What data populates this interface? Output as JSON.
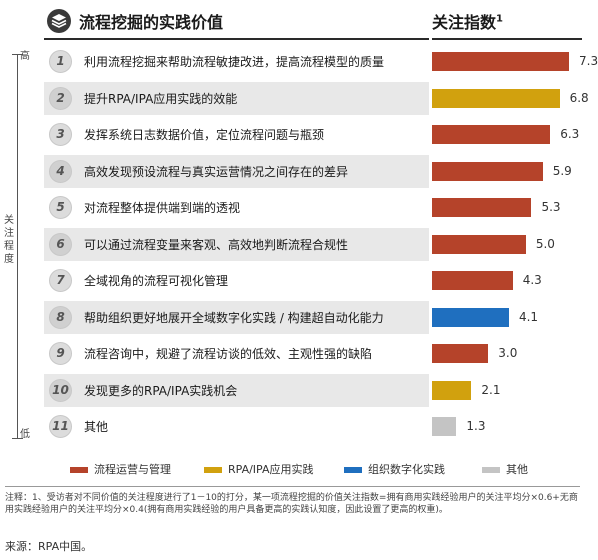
{
  "header": {
    "title": "流程挖掘的实践价值",
    "index_title": "关注指数",
    "index_sup": "1"
  },
  "axis": {
    "high": "高",
    "low": "低",
    "label": "关注程度"
  },
  "colors": {
    "process_ops": "#b5432a",
    "rpa_ipa": "#d1a10e",
    "digital": "#1f6fbf",
    "other": "#c4c4c4"
  },
  "chart_data": {
    "type": "bar",
    "orientation": "horizontal",
    "categories": [
      "利用流程挖掘来帮助流程敏捷改进，提高流程模型的质量",
      "提升RPA/IPA应用实践的效能",
      "发挥系统日志数据价值，定位流程问题与瓶颈",
      "高效发现预设流程与真实运营情况之间存在的差异",
      "对流程整体提供端到端的透视",
      "可以通过流程变量来客观、高效地判断流程合规性",
      "全域视角的流程可视化管理",
      "帮助组织更好地展开全域数字化实践 / 构建超自动化能力",
      "流程咨询中，规避了流程访谈的低效、主观性强的缺陷",
      "发现更多的RPA/IPA实践机会",
      "其他"
    ],
    "numbers": [
      "1",
      "2",
      "3",
      "4",
      "5",
      "6",
      "7",
      "8",
      "9",
      "10",
      "11"
    ],
    "values": [
      7.3,
      6.8,
      6.3,
      5.9,
      5.3,
      5.0,
      4.3,
      4.1,
      3.0,
      2.1,
      1.3
    ],
    "value_labels": [
      "7.3",
      "6.8",
      "6.3",
      "5.9",
      "5.3",
      "5.0",
      "4.3",
      "4.1",
      "3.0",
      "2.1",
      "1.3"
    ],
    "groups": [
      "process_ops",
      "rpa_ipa",
      "process_ops",
      "process_ops",
      "process_ops",
      "process_ops",
      "process_ops",
      "digital",
      "process_ops",
      "rpa_ipa",
      "other"
    ],
    "xlim": [
      0,
      10
    ],
    "legend": [
      {
        "key": "process_ops",
        "label": "流程运营与管理"
      },
      {
        "key": "rpa_ipa",
        "label": "RPA/IPA应用实践"
      },
      {
        "key": "digital",
        "label": "组织数字化实践"
      },
      {
        "key": "other",
        "label": "其他"
      }
    ]
  },
  "footnote": "注释：1、受访者对不同价值的关注程度进行了1－10的打分，某一项流程挖掘的价值关注指数=拥有商用实践经验用户的关注平均分×0.6+无商用实践经验用户的关注平均分×0.4(拥有商用实践经验的用户具备更高的实践认知度，因此设置了更高的权重)。",
  "source": "来源：RPA中国。"
}
